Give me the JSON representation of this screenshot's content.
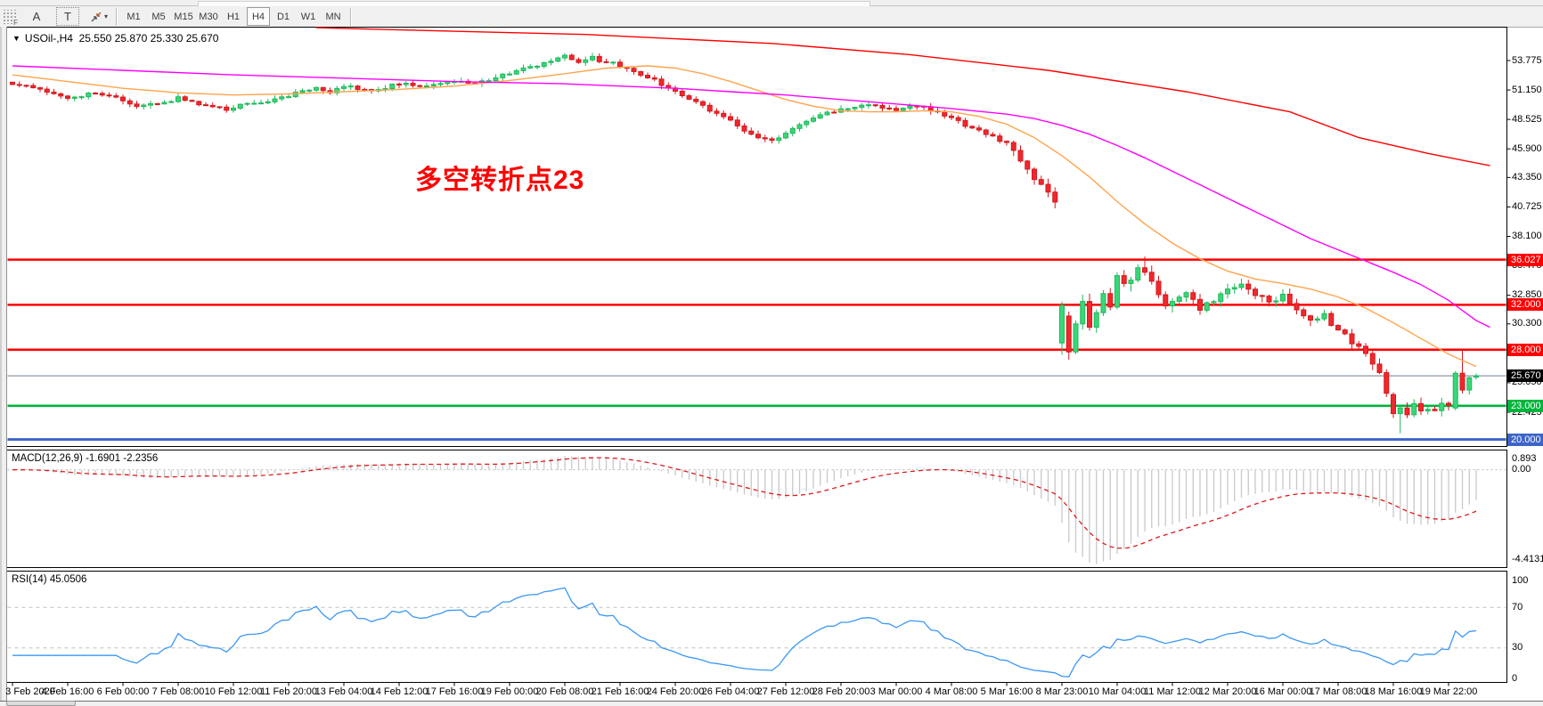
{
  "toolbar": {
    "icons": [
      {
        "name": "dotted-grid-f-icon",
        "glyph": "F"
      },
      {
        "name": "letter-a-icon",
        "glyph": "A"
      },
      {
        "name": "text-tool-icon",
        "glyph": "T"
      },
      {
        "name": "shapes-dropdown-icon",
        "glyph": "⤢",
        "caret": "▾"
      }
    ],
    "timeframes": [
      "M1",
      "M5",
      "M15",
      "M30",
      "H1",
      "H4",
      "D1",
      "W1",
      "MN"
    ],
    "active_timeframe": "H4"
  },
  "header": {
    "collapse_arrow": "▼",
    "symbol_period": "USOil-,H4",
    "ohlc_text": "25.550 25.870 25.330 25.670"
  },
  "annotation": {
    "text": "多空转折点23",
    "color": "#FF0000"
  },
  "macd_panel": {
    "label": "MACD(12,26,9) -1.6901 -2.2356",
    "scale_top": "0.893",
    "scale_zero": "0.00",
    "scale_bottom": "-4.4131"
  },
  "rsi_panel": {
    "label": "RSI(14) 45.0506",
    "scale": [
      "100",
      "70",
      "30",
      "0"
    ]
  },
  "colors": {
    "bull": "#3BD679",
    "bull_stroke": "#1FB85C",
    "bear": "#F0282D",
    "bear_stroke": "#D5181D",
    "ma_fast": "#FFA44D",
    "ma_mid": "#FF00FF",
    "ma_slow": "#FF0000",
    "hline_red": "#FF0000",
    "hline_green": "#00B43C",
    "hline_blue": "#3D64C8",
    "bid_line": "#8C97A3",
    "badge_black": "#000000",
    "macd_bar": "#C9C9C9",
    "macd_signal": "#E01818",
    "rsi_line": "#3B97F5",
    "level_dash": "#C0C0C0",
    "border": "#000000"
  },
  "chart_data": {
    "type": "candlestick+indicators",
    "symbol": "USOil-",
    "timeframe": "H4",
    "current_bar": {
      "open": 25.55,
      "high": 25.87,
      "low": 25.33,
      "close": 25.67
    },
    "bars": 213,
    "price_axis_ticks": [
      53.775,
      51.15,
      48.525,
      45.9,
      43.35,
      40.725,
      38.1,
      35.475,
      32.85,
      30.3,
      27.675,
      25.05,
      22.425
    ],
    "hlines": [
      {
        "price": 36.027,
        "label": "36.027",
        "color": "#FF0000",
        "width": 2.6,
        "badge": "#FF0000"
      },
      {
        "price": 32.0,
        "label": "32.000",
        "color": "#FF0000",
        "width": 2.6,
        "badge": "#FF0000"
      },
      {
        "price": 28.0,
        "label": "28.000",
        "color": "#FF0000",
        "width": 2.6,
        "badge": "#FF0000"
      },
      {
        "price": 25.67,
        "label": "25.670",
        "color": "#8C97A3",
        "width": 1.2,
        "badge": "#000000"
      },
      {
        "price": 23.0,
        "label": "23.000",
        "color": "#00B43C",
        "width": 2.6,
        "badge": "#00B43C"
      },
      {
        "price": 20.0,
        "label": "20.000",
        "color": "#3D64C8",
        "width": 3.0,
        "badge": "#3D64C8"
      }
    ],
    "close_waypoints": [
      [
        0,
        51.8
      ],
      [
        4,
        51.1
      ],
      [
        8,
        50.5
      ],
      [
        12,
        50.9
      ],
      [
        16,
        50.2
      ],
      [
        18,
        49.6
      ],
      [
        22,
        50.1
      ],
      [
        24,
        50.4
      ],
      [
        28,
        49.8
      ],
      [
        31,
        49.4
      ],
      [
        34,
        50.0
      ],
      [
        38,
        50.3
      ],
      [
        40,
        50.7
      ],
      [
        44,
        51.3
      ],
      [
        46,
        50.9
      ],
      [
        48,
        51.5
      ],
      [
        52,
        51.1
      ],
      [
        56,
        51.7
      ],
      [
        60,
        51.4
      ],
      [
        64,
        52.0
      ],
      [
        66,
        51.6
      ],
      [
        70,
        52.3
      ],
      [
        72,
        52.7
      ],
      [
        76,
        53.3
      ],
      [
        80,
        54.1
      ],
      [
        82,
        53.7
      ],
      [
        84,
        54.0
      ],
      [
        88,
        53.3
      ],
      [
        92,
        52.3
      ],
      [
        96,
        51.1
      ],
      [
        100,
        49.7
      ],
      [
        104,
        48.4
      ],
      [
        107,
        47.1
      ],
      [
        110,
        46.6
      ],
      [
        113,
        47.7
      ],
      [
        116,
        48.7
      ],
      [
        120,
        49.5
      ],
      [
        124,
        49.9
      ],
      [
        128,
        49.4
      ],
      [
        131,
        49.8
      ],
      [
        134,
        49.1
      ],
      [
        136,
        48.6
      ],
      [
        139,
        47.8
      ],
      [
        142,
        47.1
      ],
      [
        144,
        46.3
      ],
      [
        146,
        44.9
      ],
      [
        148,
        43.2
      ],
      [
        150,
        41.8
      ],
      [
        151,
        41.2
      ],
      [
        169,
        32.5
      ],
      [
        170,
        32.9
      ],
      [
        172,
        31.7
      ],
      [
        174,
        32.5
      ],
      [
        176,
        33.3
      ],
      [
        178,
        33.7
      ],
      [
        180,
        33.0
      ],
      [
        182,
        32.3
      ],
      [
        184,
        32.7
      ],
      [
        186,
        31.5
      ],
      [
        188,
        30.5
      ],
      [
        190,
        31.0
      ],
      [
        192,
        29.7
      ],
      [
        194,
        28.7
      ],
      [
        196,
        27.5
      ],
      [
        198,
        26.2
      ],
      [
        199,
        24.3
      ],
      [
        203,
        23.1
      ],
      [
        204,
        22.5
      ],
      [
        205,
        22.9
      ],
      [
        206,
        22.6
      ],
      [
        207,
        23.2
      ],
      [
        208,
        23.0
      ]
    ],
    "candle_overrides": {
      "151": [
        null,
        null,
        40.6,
        null
      ],
      "152": [
        28.6,
        32.3,
        27.55,
        31.95
      ],
      "153": [
        31.0,
        31.4,
        27.1,
        27.8
      ],
      "154": [
        27.8,
        30.6,
        27.6,
        30.3
      ],
      "155": [
        30.3,
        32.9,
        29.8,
        32.3
      ],
      "156": [
        32.3,
        33.0,
        29.7,
        30.0
      ],
      "157": [
        30.0,
        31.6,
        29.5,
        31.3
      ],
      "158": [
        31.3,
        33.3,
        31.0,
        33.0
      ],
      "159": [
        33.0,
        33.5,
        31.5,
        31.8
      ],
      "160": [
        31.8,
        34.9,
        31.6,
        34.6
      ],
      "161": [
        34.6,
        35.1,
        33.6,
        33.9
      ],
      "162": [
        33.9,
        34.5,
        33.2,
        34.2
      ],
      "163": [
        34.2,
        35.6,
        34.0,
        35.3
      ],
      "164": [
        35.3,
        36.3,
        34.6,
        34.9
      ],
      "165": [
        34.9,
        35.5,
        33.8,
        34.1
      ],
      "166": [
        34.1,
        34.6,
        32.6,
        32.9
      ],
      "167": [
        32.9,
        33.2,
        31.6,
        31.9
      ],
      "168": [
        31.9,
        32.6,
        31.3,
        32.3
      ],
      "200": [
        24.0,
        24.2,
        21.9,
        22.3
      ],
      "201": [
        22.3,
        23.0,
        20.55,
        22.8
      ],
      "202": [
        22.8,
        23.3,
        21.9,
        22.2
      ],
      "209": [
        22.8,
        26.1,
        22.6,
        25.9
      ],
      "210": [
        25.9,
        28.0,
        24.1,
        24.4
      ],
      "211": [
        24.4,
        25.6,
        24.0,
        25.5
      ],
      "212": [
        25.55,
        25.87,
        25.33,
        25.67
      ]
    },
    "ma_fast_waypoints": [
      [
        0,
        52.5
      ],
      [
        8,
        51.9
      ],
      [
        16,
        51.3
      ],
      [
        24,
        50.9
      ],
      [
        32,
        50.7
      ],
      [
        40,
        50.8
      ],
      [
        48,
        51.0
      ],
      [
        56,
        51.2
      ],
      [
        64,
        51.5
      ],
      [
        72,
        52.0
      ],
      [
        80,
        52.6
      ],
      [
        86,
        53.1
      ],
      [
        92,
        53.3
      ],
      [
        96,
        53.1
      ],
      [
        100,
        52.6
      ],
      [
        104,
        51.9
      ],
      [
        108,
        51.1
      ],
      [
        112,
        50.3
      ],
      [
        116,
        49.7
      ],
      [
        120,
        49.3
      ],
      [
        124,
        49.2
      ],
      [
        128,
        49.2
      ],
      [
        132,
        49.3
      ],
      [
        136,
        49.2
      ],
      [
        140,
        48.8
      ],
      [
        144,
        48.1
      ],
      [
        148,
        46.9
      ],
      [
        152,
        45.3
      ],
      [
        156,
        43.4
      ],
      [
        160,
        41.2
      ],
      [
        164,
        39.2
      ],
      [
        168,
        37.5
      ],
      [
        172,
        36.1
      ],
      [
        176,
        35.0
      ],
      [
        180,
        34.3
      ],
      [
        184,
        33.9
      ],
      [
        188,
        33.4
      ],
      [
        192,
        32.7
      ],
      [
        196,
        31.7
      ],
      [
        200,
        30.4
      ],
      [
        204,
        29.0
      ],
      [
        208,
        27.6
      ],
      [
        212,
        26.5
      ]
    ],
    "ma_mid_waypoints": [
      [
        0,
        53.3
      ],
      [
        16,
        52.9
      ],
      [
        32,
        52.5
      ],
      [
        48,
        52.2
      ],
      [
        64,
        51.9
      ],
      [
        80,
        51.7
      ],
      [
        96,
        51.3
      ],
      [
        104,
        51.0
      ],
      [
        112,
        50.7
      ],
      [
        120,
        50.3
      ],
      [
        128,
        49.9
      ],
      [
        136,
        49.5
      ],
      [
        144,
        49.0
      ],
      [
        148,
        48.6
      ],
      [
        152,
        48.0
      ],
      [
        156,
        47.2
      ],
      [
        160,
        46.2
      ],
      [
        164,
        45.1
      ],
      [
        168,
        43.9
      ],
      [
        172,
        42.7
      ],
      [
        176,
        41.5
      ],
      [
        180,
        40.3
      ],
      [
        184,
        39.1
      ],
      [
        188,
        37.9
      ],
      [
        192,
        36.9
      ],
      [
        196,
        35.9
      ],
      [
        200,
        34.9
      ],
      [
        204,
        33.8
      ],
      [
        208,
        32.4
      ],
      [
        212,
        30.6
      ],
      [
        214,
        30.0
      ]
    ],
    "ma_slow_waypoints": [
      [
        44,
        56.7
      ],
      [
        60,
        56.45
      ],
      [
        83,
        56.1
      ],
      [
        110,
        55.3
      ],
      [
        130,
        54.3
      ],
      [
        150,
        52.9
      ],
      [
        170,
        51.0
      ],
      [
        185,
        49.2
      ],
      [
        195,
        46.9
      ],
      [
        205,
        45.5
      ],
      [
        214,
        44.4
      ]
    ],
    "macd": {
      "params": [
        12,
        26,
        9
      ],
      "current_main": -1.6901,
      "current_signal": -2.2356,
      "scale_max": 0.893,
      "scale_min": -4.4131
    },
    "rsi": {
      "period": 14,
      "current": 45.0506,
      "levels": [
        30,
        70
      ]
    },
    "time_labels": [
      "3 Feb 2020",
      "4 Feb 16:00",
      "6 Feb 00:00",
      "7 Feb 08:00",
      "10 Feb 12:00",
      "11 Feb 20:00",
      "13 Feb 04:00",
      "14 Feb 12:00",
      "17 Feb 16:00",
      "19 Feb 00:00",
      "20 Feb 08:00",
      "21 Feb 16:00",
      "24 Feb 20:00",
      "26 Feb 04:00",
      "27 Feb 12:00",
      "28 Feb 20:00",
      "3 Mar 00:00",
      "4 Mar 08:00",
      "5 Mar 16:00",
      "8 Mar 23:00",
      "10 Mar 04:00",
      "11 Mar 12:00",
      "12 Mar 20:00",
      "16 Mar 00:00",
      "17 Mar 08:00",
      "18 Mar 16:00",
      "19 Mar 22:00"
    ]
  }
}
